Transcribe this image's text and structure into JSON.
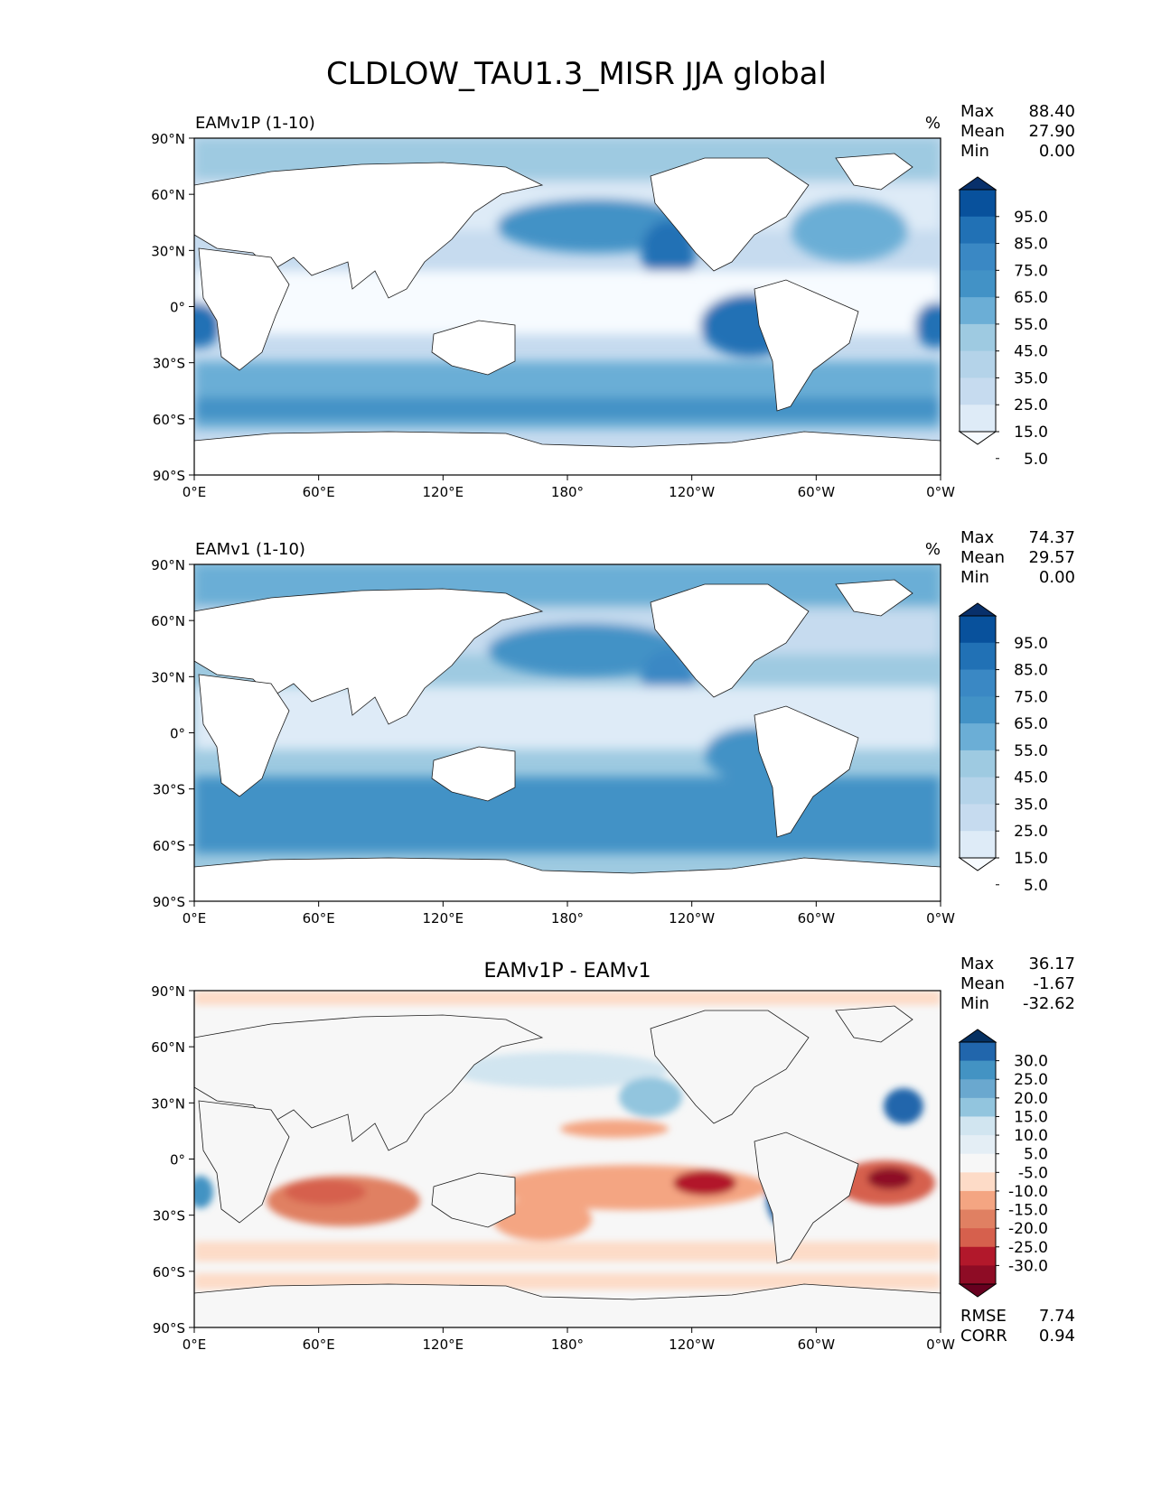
{
  "title": "CLDLOW_TAU1.3_MISR JJA global",
  "colors": {
    "land": "#ffffff",
    "coast": "#1a1a1a",
    "seq": [
      "#f7fbff",
      "#deebf7",
      "#c6dbef",
      "#b4d3e9",
      "#9ecae1",
      "#6baed6",
      "#4292c6",
      "#3a88c4",
      "#2171b5",
      "#08519c",
      "#08306b"
    ],
    "div_neg": [
      "#fddbc7",
      "#f4a582",
      "#e08062",
      "#d6604d",
      "#b2182b",
      "#8e0c25",
      "#67001f"
    ],
    "div_mid": "#f7f7f7",
    "div_pos": [
      "#e4eef5",
      "#d1e5f0",
      "#92c5de",
      "#6aa8cf",
      "#4393c3",
      "#2166ac",
      "#053061"
    ]
  },
  "chart_data": [
    {
      "type": "heatmap",
      "title": "EAMv1P (1-10)",
      "units": "%",
      "stats": [
        {
          "label": "Max",
          "value": "88.40"
        },
        {
          "label": "Mean",
          "value": "27.90"
        },
        {
          "label": "Min",
          "value": "0.00"
        }
      ],
      "colorbar_ticks": [
        "95.0",
        "85.0",
        "75.0",
        "65.0",
        "55.0",
        "45.0",
        "35.0",
        "25.0",
        "15.0",
        "5.0"
      ],
      "x_ticks": [
        "0°E",
        "60°E",
        "120°E",
        "180°",
        "120°W",
        "60°W",
        "0°W"
      ],
      "y_ticks": [
        "90°N",
        "60°N",
        "30°N",
        "0°",
        "30°S",
        "60°S",
        "90°S"
      ],
      "xlim": [
        0,
        360
      ],
      "ylim": [
        -90,
        90
      ]
    },
    {
      "type": "heatmap",
      "title": "EAMv1 (1-10)",
      "units": "%",
      "stats": [
        {
          "label": "Max",
          "value": "74.37"
        },
        {
          "label": "Mean",
          "value": "29.57"
        },
        {
          "label": "Min",
          "value": "0.00"
        }
      ],
      "colorbar_ticks": [
        "95.0",
        "85.0",
        "75.0",
        "65.0",
        "55.0",
        "45.0",
        "35.0",
        "25.0",
        "15.0",
        "5.0"
      ],
      "x_ticks": [
        "0°E",
        "60°E",
        "120°E",
        "180°",
        "120°W",
        "60°W",
        "0°W"
      ],
      "y_ticks": [
        "90°N",
        "60°N",
        "30°N",
        "0°",
        "30°S",
        "60°S",
        "90°S"
      ],
      "xlim": [
        0,
        360
      ],
      "ylim": [
        -90,
        90
      ]
    },
    {
      "type": "heatmap",
      "title": "EAMv1P - EAMv1",
      "units": "",
      "stats": [
        {
          "label": "Max",
          "value": "36.17"
        },
        {
          "label": "Mean",
          "value": "-1.67"
        },
        {
          "label": "Min",
          "value": "-32.62"
        }
      ],
      "colorbar_ticks": [
        "30.0",
        "25.0",
        "20.0",
        "15.0",
        "10.0",
        "5.0",
        "-5.0",
        "-10.0",
        "-15.0",
        "-20.0",
        "-25.0",
        "-30.0"
      ],
      "x_ticks": [
        "0°E",
        "60°E",
        "120°E",
        "180°",
        "120°W",
        "60°W",
        "0°W"
      ],
      "y_ticks": [
        "90°N",
        "60°N",
        "30°N",
        "0°",
        "30°S",
        "60°S",
        "90°S"
      ],
      "xlim": [
        0,
        360
      ],
      "ylim": [
        -90,
        90
      ],
      "footer_stats": [
        {
          "label": "RMSE",
          "value": "7.74"
        },
        {
          "label": "CORR",
          "value": "0.94"
        }
      ]
    }
  ]
}
